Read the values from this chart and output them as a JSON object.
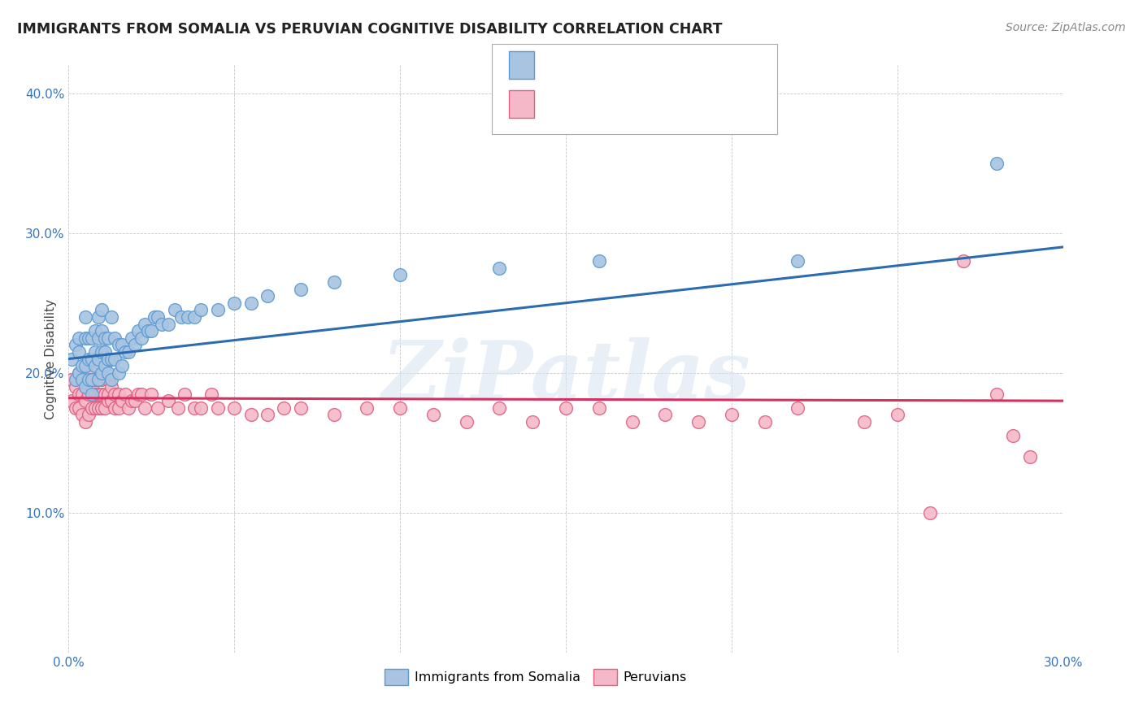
{
  "title": "IMMIGRANTS FROM SOMALIA VS PERUVIAN COGNITIVE DISABILITY CORRELATION CHART",
  "source": "Source: ZipAtlas.com",
  "ylabel": "Cognitive Disability",
  "xlim": [
    0.0,
    0.3
  ],
  "ylim": [
    0.0,
    0.42
  ],
  "x_ticks": [
    0.0,
    0.05,
    0.1,
    0.15,
    0.2,
    0.25,
    0.3
  ],
  "y_ticks": [
    0.0,
    0.1,
    0.2,
    0.3,
    0.4
  ],
  "somalia_color": "#a8c4e0",
  "somalia_edge_color": "#5b9bd5",
  "peruvian_color": "#f4b8c8",
  "peruvian_edge_color": "#e06080",
  "trendline_somalia_color": "#2b6cb0",
  "trendline_peruvian_color": "#d63060",
  "watermark": "ZiPatlas",
  "somalia_data_x": [
    0.001,
    0.002,
    0.002,
    0.003,
    0.003,
    0.003,
    0.004,
    0.004,
    0.005,
    0.005,
    0.005,
    0.005,
    0.006,
    0.006,
    0.006,
    0.007,
    0.007,
    0.007,
    0.007,
    0.008,
    0.008,
    0.008,
    0.009,
    0.009,
    0.009,
    0.009,
    0.01,
    0.01,
    0.01,
    0.01,
    0.011,
    0.011,
    0.011,
    0.012,
    0.012,
    0.012,
    0.013,
    0.013,
    0.013,
    0.014,
    0.014,
    0.015,
    0.015,
    0.016,
    0.016,
    0.017,
    0.018,
    0.019,
    0.02,
    0.021,
    0.022,
    0.023,
    0.024,
    0.025,
    0.026,
    0.027,
    0.028,
    0.03,
    0.032,
    0.034,
    0.036,
    0.038,
    0.04,
    0.045,
    0.05,
    0.055,
    0.06,
    0.07,
    0.08,
    0.1,
    0.13,
    0.16,
    0.22,
    0.28
  ],
  "somalia_data_y": [
    0.21,
    0.195,
    0.22,
    0.2,
    0.215,
    0.225,
    0.195,
    0.205,
    0.19,
    0.205,
    0.225,
    0.24,
    0.195,
    0.21,
    0.225,
    0.185,
    0.195,
    0.21,
    0.225,
    0.205,
    0.215,
    0.23,
    0.195,
    0.21,
    0.225,
    0.24,
    0.2,
    0.215,
    0.23,
    0.245,
    0.205,
    0.215,
    0.225,
    0.2,
    0.21,
    0.225,
    0.195,
    0.21,
    0.24,
    0.21,
    0.225,
    0.2,
    0.22,
    0.205,
    0.22,
    0.215,
    0.215,
    0.225,
    0.22,
    0.23,
    0.225,
    0.235,
    0.23,
    0.23,
    0.24,
    0.24,
    0.235,
    0.235,
    0.245,
    0.24,
    0.24,
    0.24,
    0.245,
    0.245,
    0.25,
    0.25,
    0.255,
    0.26,
    0.265,
    0.27,
    0.275,
    0.28,
    0.28,
    0.35
  ],
  "peruvian_data_x": [
    0.001,
    0.001,
    0.002,
    0.002,
    0.003,
    0.003,
    0.003,
    0.004,
    0.004,
    0.004,
    0.005,
    0.005,
    0.005,
    0.006,
    0.006,
    0.006,
    0.007,
    0.007,
    0.007,
    0.008,
    0.008,
    0.008,
    0.009,
    0.009,
    0.009,
    0.01,
    0.01,
    0.01,
    0.011,
    0.011,
    0.012,
    0.012,
    0.012,
    0.013,
    0.013,
    0.014,
    0.014,
    0.015,
    0.015,
    0.016,
    0.017,
    0.018,
    0.019,
    0.02,
    0.021,
    0.022,
    0.023,
    0.025,
    0.027,
    0.03,
    0.033,
    0.035,
    0.038,
    0.04,
    0.043,
    0.045,
    0.05,
    0.055,
    0.06,
    0.065,
    0.07,
    0.08,
    0.09,
    0.1,
    0.11,
    0.12,
    0.13,
    0.14,
    0.15,
    0.16,
    0.17,
    0.18,
    0.19,
    0.2,
    0.21,
    0.22,
    0.24,
    0.25,
    0.26,
    0.27,
    0.28,
    0.285,
    0.29
  ],
  "peruvian_data_y": [
    0.18,
    0.195,
    0.175,
    0.19,
    0.175,
    0.185,
    0.2,
    0.17,
    0.185,
    0.195,
    0.165,
    0.18,
    0.195,
    0.17,
    0.185,
    0.2,
    0.175,
    0.19,
    0.2,
    0.175,
    0.185,
    0.195,
    0.175,
    0.185,
    0.195,
    0.175,
    0.185,
    0.195,
    0.175,
    0.185,
    0.18,
    0.185,
    0.195,
    0.18,
    0.19,
    0.175,
    0.185,
    0.175,
    0.185,
    0.18,
    0.185,
    0.175,
    0.18,
    0.18,
    0.185,
    0.185,
    0.175,
    0.185,
    0.175,
    0.18,
    0.175,
    0.185,
    0.175,
    0.175,
    0.185,
    0.175,
    0.175,
    0.17,
    0.17,
    0.175,
    0.175,
    0.17,
    0.175,
    0.175,
    0.17,
    0.165,
    0.175,
    0.165,
    0.175,
    0.175,
    0.165,
    0.17,
    0.165,
    0.17,
    0.165,
    0.175,
    0.165,
    0.17,
    0.1,
    0.28,
    0.185,
    0.155,
    0.14
  ],
  "trendline_somalia_x0": 0.0,
  "trendline_somalia_x1": 0.3,
  "trendline_somalia_y0": 0.21,
  "trendline_somalia_y1": 0.29,
  "trendline_peruvian_x0": 0.0,
  "trendline_peruvian_x1": 0.3,
  "trendline_peruvian_y0": 0.182,
  "trendline_peruvian_y1": 0.18
}
